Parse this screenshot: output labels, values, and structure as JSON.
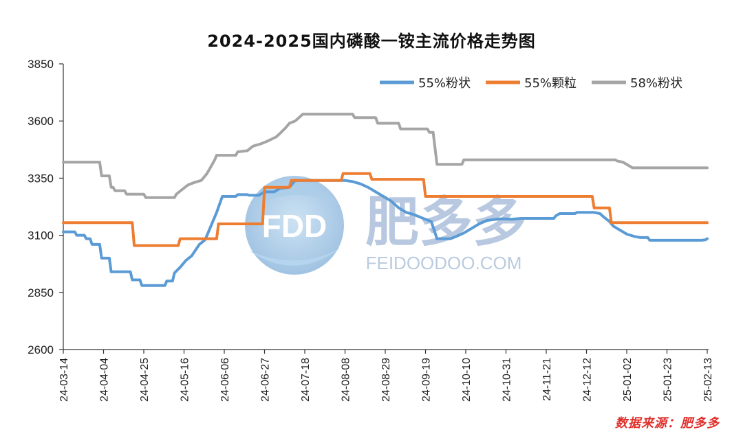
{
  "chart_data": {
    "type": "line",
    "title": "2024-2025国内磷酸一铵主流价格走势图",
    "ylim": [
      2600,
      3850
    ],
    "yticks": [
      2600,
      2850,
      3100,
      3350,
      3600,
      3850
    ],
    "xticks": [
      "24-03-14",
      "24-04-04",
      "24-04-25",
      "24-05-16",
      "24-06-06",
      "24-06-27",
      "24-07-18",
      "24-08-08",
      "24-08-29",
      "24-09-19",
      "24-10-10",
      "24-10-31",
      "24-11-21",
      "24-12-12",
      "25-01-02",
      "25-01-23",
      "25-02-13"
    ],
    "x_range": [
      "2024-03-14",
      "2025-02-13"
    ],
    "grid": false,
    "legend_position": "top-right",
    "series": [
      {
        "name": "55%粉状",
        "color": "#5b9bd5",
        "points": [
          [
            "2024-03-14",
            3115
          ],
          [
            "2024-03-20",
            3115
          ],
          [
            "2024-03-21",
            3100
          ],
          [
            "2024-03-25",
            3100
          ],
          [
            "2024-03-26",
            3085
          ],
          [
            "2024-03-28",
            3085
          ],
          [
            "2024-03-29",
            3060
          ],
          [
            "2024-04-02",
            3060
          ],
          [
            "2024-04-03",
            3000
          ],
          [
            "2024-04-07",
            3000
          ],
          [
            "2024-04-08",
            2940
          ],
          [
            "2024-04-18",
            2940
          ],
          [
            "2024-04-19",
            2905
          ],
          [
            "2024-04-23",
            2905
          ],
          [
            "2024-04-24",
            2880
          ],
          [
            "2024-05-06",
            2880
          ],
          [
            "2024-05-07",
            2900
          ],
          [
            "2024-05-10",
            2900
          ],
          [
            "2024-05-11",
            2935
          ],
          [
            "2024-05-14",
            2960
          ],
          [
            "2024-05-17",
            2990
          ],
          [
            "2024-05-20",
            3010
          ],
          [
            "2024-05-24",
            3060
          ],
          [
            "2024-05-27",
            3080
          ],
          [
            "2024-05-30",
            3140
          ],
          [
            "2024-06-02",
            3200
          ],
          [
            "2024-06-05",
            3270
          ],
          [
            "2024-06-12",
            3270
          ],
          [
            "2024-06-13",
            3278
          ],
          [
            "2024-06-18",
            3278
          ],
          [
            "2024-06-19",
            3275
          ],
          [
            "2024-06-24",
            3275
          ],
          [
            "2024-06-27",
            3290
          ],
          [
            "2024-07-02",
            3290
          ],
          [
            "2024-07-05",
            3305
          ],
          [
            "2024-07-10",
            3310
          ],
          [
            "2024-07-13",
            3340
          ],
          [
            "2024-08-08",
            3340
          ],
          [
            "2024-08-12",
            3335
          ],
          [
            "2024-08-16",
            3325
          ],
          [
            "2024-08-20",
            3310
          ],
          [
            "2024-08-24",
            3290
          ],
          [
            "2024-08-28",
            3270
          ],
          [
            "2024-09-01",
            3250
          ],
          [
            "2024-09-05",
            3220
          ],
          [
            "2024-09-09",
            3200
          ],
          [
            "2024-09-13",
            3190
          ],
          [
            "2024-09-19",
            3170
          ],
          [
            "2024-09-22",
            3160
          ],
          [
            "2024-09-25",
            3085
          ],
          [
            "2024-10-02",
            3085
          ],
          [
            "2024-10-05",
            3095
          ],
          [
            "2024-10-09",
            3110
          ],
          [
            "2024-10-13",
            3130
          ],
          [
            "2024-10-17",
            3150
          ],
          [
            "2024-10-21",
            3165
          ],
          [
            "2024-10-26",
            3170
          ],
          [
            "2024-10-29",
            3172
          ],
          [
            "2024-11-03",
            3170
          ],
          [
            "2024-11-08",
            3174
          ],
          [
            "2024-11-25",
            3174
          ],
          [
            "2024-11-26",
            3185
          ],
          [
            "2024-11-28",
            3195
          ],
          [
            "2024-12-06",
            3195
          ],
          [
            "2024-12-07",
            3200
          ],
          [
            "2024-12-16",
            3200
          ],
          [
            "2024-12-19",
            3195
          ],
          [
            "2024-12-21",
            3180
          ],
          [
            "2024-12-24",
            3160
          ],
          [
            "2024-12-26",
            3140
          ],
          [
            "2024-12-30",
            3120
          ],
          [
            "2025-01-02",
            3105
          ],
          [
            "2025-01-06",
            3095
          ],
          [
            "2025-01-09",
            3090
          ],
          [
            "2025-01-13",
            3090
          ],
          [
            "2025-01-14",
            3078
          ],
          [
            "2025-02-10",
            3078
          ],
          [
            "2025-02-12",
            3080
          ],
          [
            "2025-02-13",
            3085
          ]
        ]
      },
      {
        "name": "55%颗粒",
        "color": "#ed7d31",
        "points": [
          [
            "2024-03-14",
            3155
          ],
          [
            "2024-04-19",
            3155
          ],
          [
            "2024-04-20",
            3055
          ],
          [
            "2024-05-13",
            3055
          ],
          [
            "2024-05-14",
            3085
          ],
          [
            "2024-06-02",
            3085
          ],
          [
            "2024-06-03",
            3150
          ],
          [
            "2024-06-26",
            3150
          ],
          [
            "2024-06-27",
            3310
          ],
          [
            "2024-07-10",
            3310
          ],
          [
            "2024-07-11",
            3340
          ],
          [
            "2024-08-06",
            3340
          ],
          [
            "2024-08-07",
            3370
          ],
          [
            "2024-08-21",
            3370
          ],
          [
            "2024-08-22",
            3345
          ],
          [
            "2024-09-18",
            3345
          ],
          [
            "2024-09-19",
            3270
          ],
          [
            "2024-12-15",
            3270
          ],
          [
            "2024-12-16",
            3220
          ],
          [
            "2024-12-24",
            3220
          ],
          [
            "2024-12-25",
            3155
          ],
          [
            "2025-02-13",
            3155
          ]
        ]
      },
      {
        "name": "58%粉状",
        "color": "#a5a5a5",
        "points": [
          [
            "2024-03-14",
            3420
          ],
          [
            "2024-04-02",
            3420
          ],
          [
            "2024-04-03",
            3360
          ],
          [
            "2024-04-07",
            3360
          ],
          [
            "2024-04-08",
            3310
          ],
          [
            "2024-04-09",
            3310
          ],
          [
            "2024-04-10",
            3295
          ],
          [
            "2024-04-15",
            3295
          ],
          [
            "2024-04-16",
            3280
          ],
          [
            "2024-04-25",
            3280
          ],
          [
            "2024-04-26",
            3265
          ],
          [
            "2024-05-11",
            3265
          ],
          [
            "2024-05-12",
            3280
          ],
          [
            "2024-05-15",
            3300
          ],
          [
            "2024-05-18",
            3320
          ],
          [
            "2024-05-21",
            3330
          ],
          [
            "2024-05-25",
            3340
          ],
          [
            "2024-05-28",
            3370
          ],
          [
            "2024-05-30",
            3400
          ],
          [
            "2024-06-01",
            3430
          ],
          [
            "2024-06-02",
            3450
          ],
          [
            "2024-06-12",
            3450
          ],
          [
            "2024-06-13",
            3465
          ],
          [
            "2024-06-18",
            3470
          ],
          [
            "2024-06-21",
            3490
          ],
          [
            "2024-06-25",
            3500
          ],
          [
            "2024-06-28",
            3510
          ],
          [
            "2024-07-03",
            3530
          ],
          [
            "2024-07-05",
            3545
          ],
          [
            "2024-07-08",
            3570
          ],
          [
            "2024-07-10",
            3590
          ],
          [
            "2024-07-13",
            3600
          ],
          [
            "2024-07-17",
            3630
          ],
          [
            "2024-08-12",
            3630
          ],
          [
            "2024-08-13",
            3615
          ],
          [
            "2024-08-24",
            3615
          ],
          [
            "2024-08-25",
            3590
          ],
          [
            "2024-09-05",
            3590
          ],
          [
            "2024-09-06",
            3565
          ],
          [
            "2024-09-20",
            3565
          ],
          [
            "2024-09-21",
            3550
          ],
          [
            "2024-09-23",
            3550
          ],
          [
            "2024-09-25",
            3410
          ],
          [
            "2024-10-08",
            3410
          ],
          [
            "2024-10-09",
            3430
          ],
          [
            "2024-12-27",
            3430
          ],
          [
            "2024-12-28",
            3425
          ],
          [
            "2024-12-31",
            3420
          ],
          [
            "2025-01-02",
            3410
          ],
          [
            "2025-01-05",
            3395
          ],
          [
            "2025-02-13",
            3395
          ]
        ]
      }
    ]
  },
  "watermark": {
    "logo_text": "FDD",
    "brand_name": "肥多多",
    "url_text": "FEIDOODOO.COM"
  },
  "source_note": "数据来源：肥多多"
}
